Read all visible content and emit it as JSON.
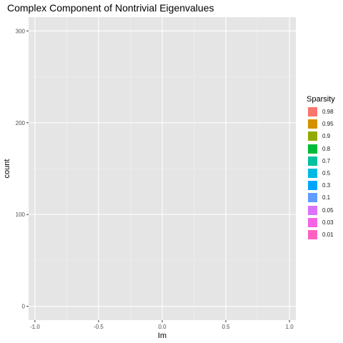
{
  "chart_data": {
    "type": "bar",
    "title": "Complex Component of Nontrivial Eigenvalues",
    "xlabel": "Im",
    "ylabel": "count",
    "xlim": [
      -1.05,
      1.05
    ],
    "ylim": [
      -15,
      315
    ],
    "x_ticks": [
      -1.0,
      -0.5,
      0.0,
      0.5,
      1.0
    ],
    "x_tick_labels": [
      "-1.0",
      "-0.5",
      "0.0",
      "0.5",
      "1.0"
    ],
    "x_minor_ticks": [
      -0.75,
      -0.25,
      0.25,
      0.75
    ],
    "y_ticks": [
      0,
      100,
      200,
      300
    ],
    "y_tick_labels": [
      "0",
      "100",
      "200",
      "300"
    ],
    "y_minor_ticks": [
      50,
      150,
      250
    ],
    "grid": true,
    "legend": {
      "title": "Sparsity",
      "position": "right",
      "entries": [
        "0.98",
        "0.95",
        "0.9",
        "0.8",
        "0.7",
        "0.5",
        "0.3",
        "0.1",
        "0.05",
        "0.03",
        "0.01"
      ]
    },
    "series": [
      {
        "name": "0.98",
        "color": "#F8766D",
        "values": []
      },
      {
        "name": "0.95",
        "color": "#D39200",
        "values": []
      },
      {
        "name": "0.9",
        "color": "#93AA00",
        "values": []
      },
      {
        "name": "0.8",
        "color": "#00BA38",
        "values": []
      },
      {
        "name": "0.7",
        "color": "#00C19F",
        "values": []
      },
      {
        "name": "0.5",
        "color": "#00B9E3",
        "values": []
      },
      {
        "name": "0.3",
        "color": "#00A5FF",
        "values": []
      },
      {
        "name": "0.1",
        "color": "#619CFF",
        "values": []
      },
      {
        "name": "0.05",
        "color": "#DB72FB",
        "values": []
      },
      {
        "name": "0.03",
        "color": "#F564E3",
        "values": []
      },
      {
        "name": "0.01",
        "color": "#FF61C3",
        "values": []
      }
    ]
  },
  "colors": {
    "panel_background": "#E5E5E5",
    "grid_major": "#FFFFFF",
    "grid_minor": "#F2F2F2",
    "tick_text": "#4D4D4D"
  }
}
